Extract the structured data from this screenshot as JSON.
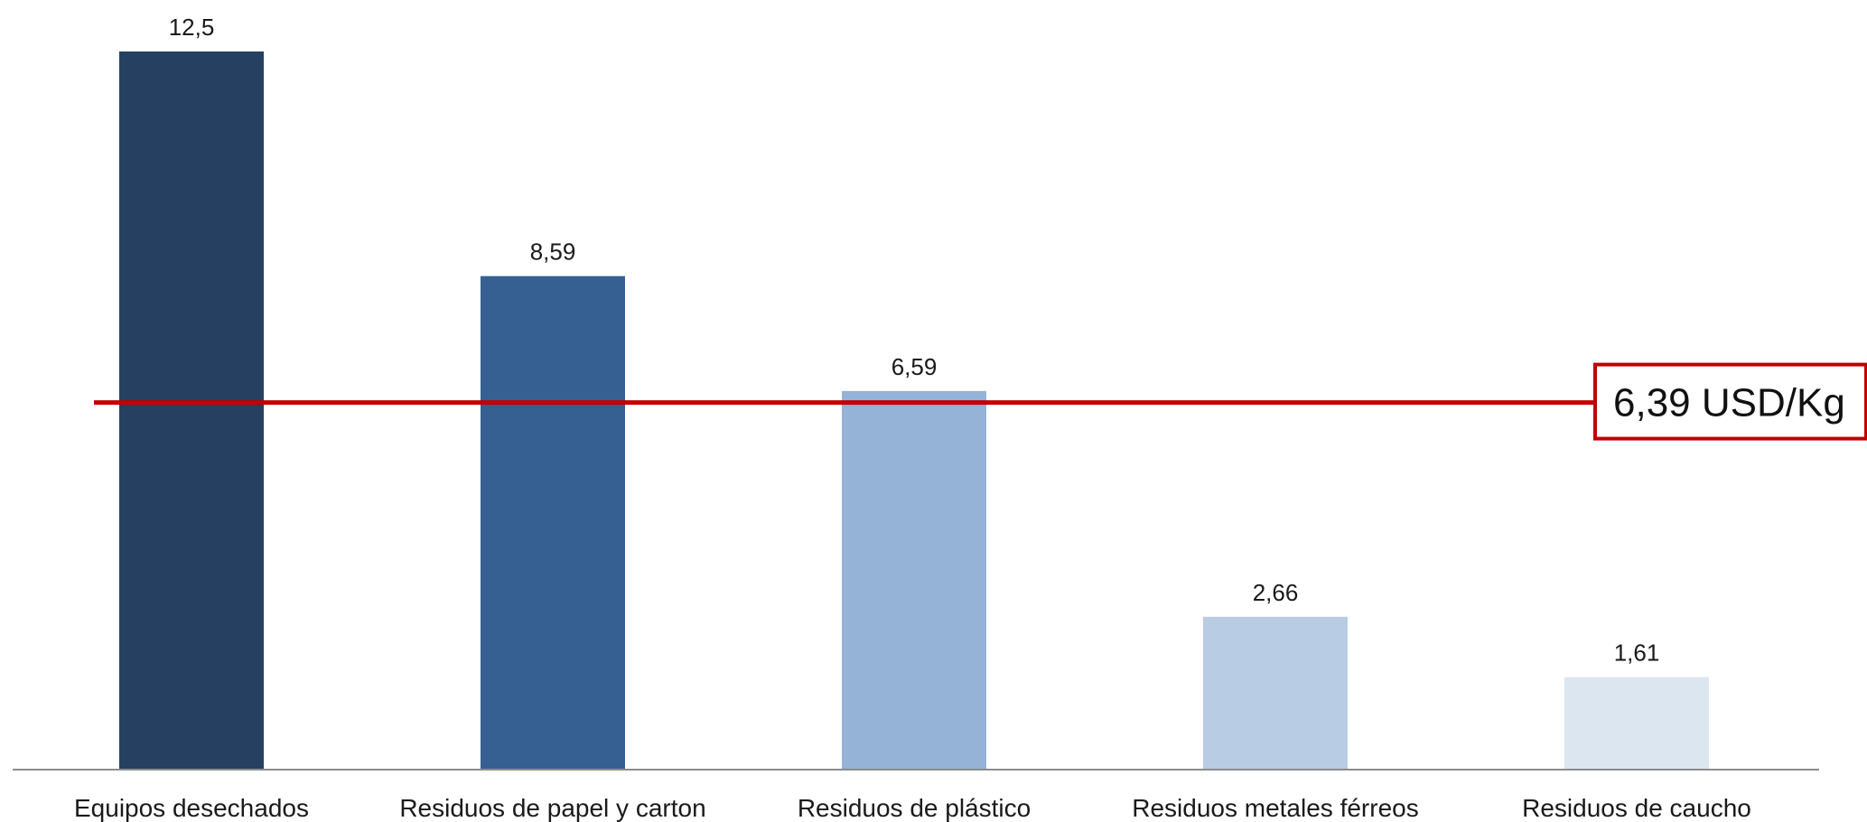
{
  "chart_data": {
    "type": "bar",
    "categories": [
      "Equipos desechados",
      "Residuos de papel y carton",
      "Residuos de plástico",
      "Residuos metales férreos",
      "Residuos de caucho"
    ],
    "values": [
      12.5,
      8.59,
      6.59,
      2.66,
      1.61
    ],
    "data_labels": [
      "12,5",
      "8,59",
      "6,59",
      "2,66",
      "1,61"
    ],
    "bar_colors": [
      "#254061",
      "#366092",
      "#95b3d7",
      "#b8cce4",
      "#dce6f1"
    ],
    "reference_line": {
      "value": 6.39,
      "label": "6,39 USD/Kg",
      "color": "#c00000"
    },
    "ylim": [
      0,
      12.5
    ],
    "grid": false,
    "legend": "none"
  }
}
